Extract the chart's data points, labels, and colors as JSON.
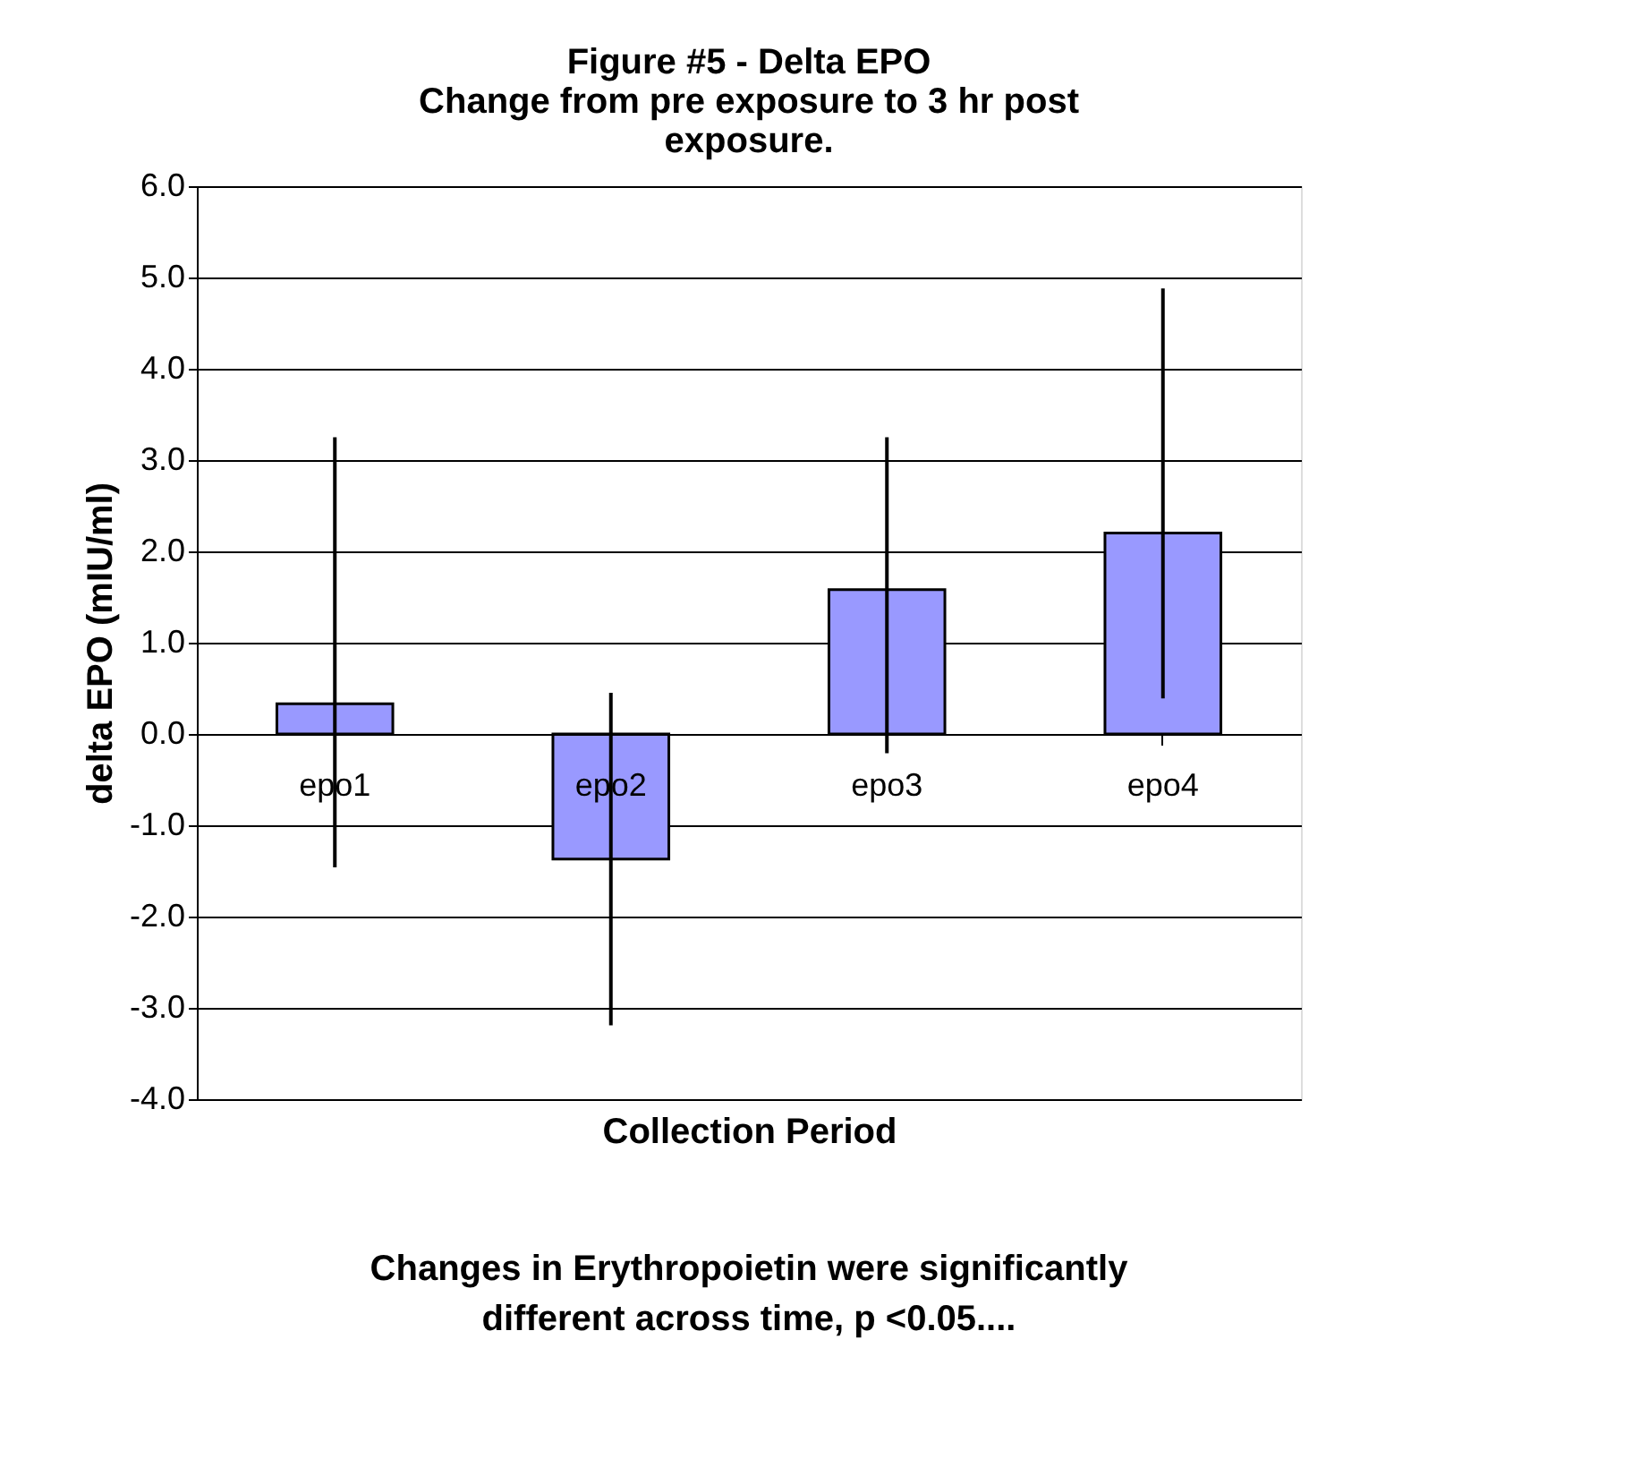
{
  "chart_data": {
    "type": "bar",
    "title": "Figure #5 - Delta EPO",
    "subtitle": "Change from pre exposure to 3 hr post exposure.",
    "xlabel": "Collection Period",
    "ylabel": "delta EPO (mIU/ml)",
    "categories": [
      "epo1",
      "epo2",
      "epo3",
      "epo4"
    ],
    "values": [
      0.33,
      -1.37,
      1.58,
      2.2
    ],
    "errors": [
      [
        -1.46,
        3.25
      ],
      [
        -3.19,
        0.45
      ],
      [
        -0.21,
        3.25
      ],
      [
        0.39,
        4.88
      ]
    ],
    "color": "#9999ff",
    "ylim": [
      -4,
      6
    ],
    "yticks": [
      {
        "value": -4,
        "label": "-4.0"
      },
      {
        "value": -3,
        "label": "-3.0"
      },
      {
        "value": -2,
        "label": "-2.0"
      },
      {
        "value": -1,
        "label": "-1.0"
      },
      {
        "value": 0,
        "label": "0.0"
      },
      {
        "value": 1,
        "label": "1.0"
      },
      {
        "value": 2,
        "label": "2.0"
      },
      {
        "value": 3,
        "label": "3.0"
      },
      {
        "value": 4,
        "label": "4.0"
      },
      {
        "value": 5,
        "label": "5.0"
      },
      {
        "value": 6,
        "label": "6.0"
      }
    ],
    "grid": "y",
    "annotations": [
      "Changes in Erythropoietin were significantly different across time, p <0.05...."
    ]
  }
}
